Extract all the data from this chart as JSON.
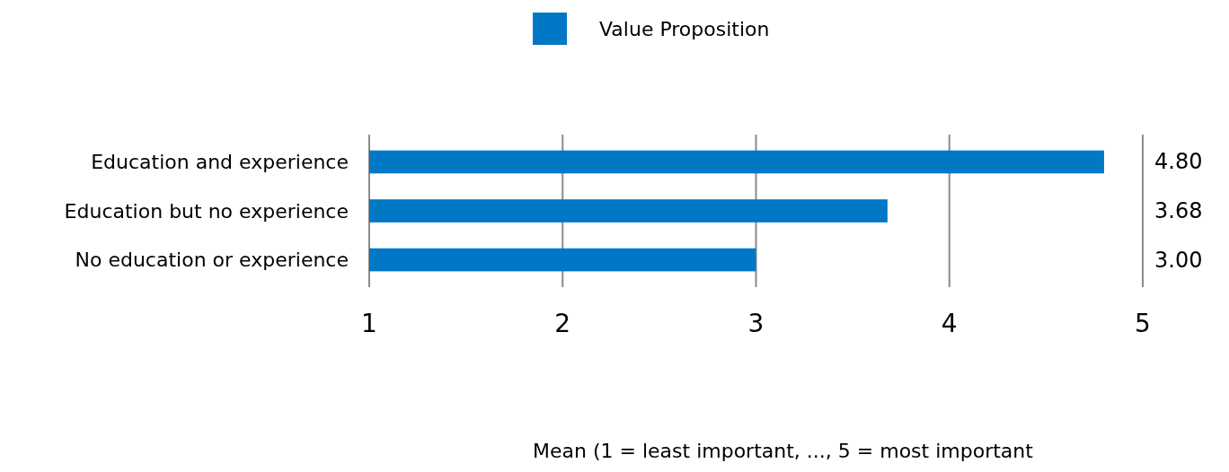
{
  "chart_data": {
    "type": "bar",
    "orientation": "horizontal",
    "categories": [
      "Education and experience",
      "Education but no experience",
      "No education or experience"
    ],
    "series": [
      {
        "name": "Value Proposition",
        "color": "#0078c6",
        "values": [
          4.8,
          3.68,
          3.0
        ],
        "value_labels": [
          "4.80",
          "3.68",
          "3.00"
        ]
      }
    ],
    "xlim": [
      1,
      5
    ],
    "xticks": [
      1,
      2,
      3,
      4,
      5
    ],
    "grid": "x",
    "legend": "top",
    "annotations": [
      "Mean (1 = least important, ..., 5 = most important"
    ]
  }
}
